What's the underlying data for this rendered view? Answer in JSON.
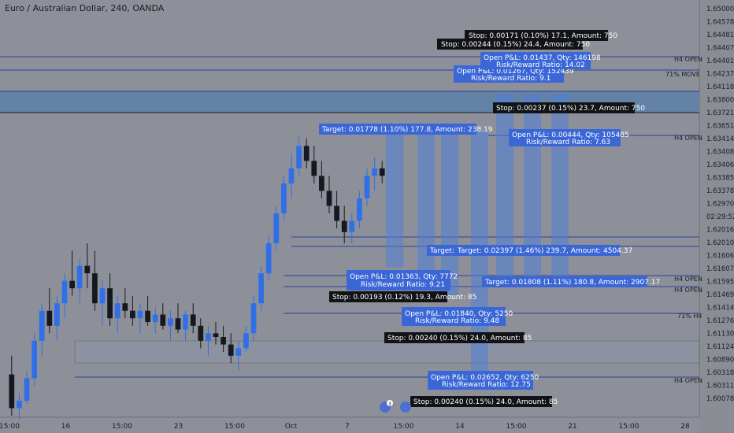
{
  "title": "Euro / Australian Dollar, 240, OANDA",
  "chart_data": {
    "type": "candlestick",
    "ylim": [
      1.6,
      1.654
    ],
    "price_scale": [
      "1.65000",
      "1.64578",
      "1.64481",
      "1.64407",
      "1.64401",
      "1.64237",
      "1.64118",
      "1.63800",
      "1.63721",
      "1.63651",
      "1.63414",
      "1.63408",
      "1.63406",
      "1.63385",
      "1.63378",
      "1.62970",
      "02:29:52",
      "1.62016",
      "1.62010",
      "1.61606",
      "1.61607",
      "1.61595",
      "1.61469",
      "1.61414",
      "1.61276",
      "1.61130",
      "1.61124",
      "1.60890",
      "1.60318",
      "1.60311",
      "1.60078"
    ],
    "x_ticks": [
      "15:00",
      "16",
      "15:00",
      "23",
      "15:00",
      "Oct",
      "7",
      "15:00",
      "14",
      "15:00",
      "21",
      "15:00",
      "28"
    ],
    "level_labels": [
      "H4 OPEN",
      "71% MOVE",
      "H4 OPEN",
      "H4 OPEN",
      "H4 OPEN",
      "71% H4",
      "H4 OPEN"
    ],
    "annotations": [
      "Stop: 0.00171 (0.10%) 17.1, Amount: 750",
      "Stop: 0.00244 (0.15%) 24.4, Amount: 750",
      "Open P&L: 0.01437, Qty: 146198",
      "Risk/Reward Ratio: 14.02",
      "Open P&L: 0.01267, Qty: 152439",
      "Risk/Reward Ratio: 9.1",
      "Stop: 0.00237 (0.15%) 23.7, Amount: 750",
      "Target: 0.01778 (1.10%) 177.8, Amount: 238.19",
      "Open P&L: 0.00444, Qty: 105485",
      "Risk/Reward Ratio: 7.63",
      "Target:",
      "Target: 0.02397 (1.46%) 239.7, Amount: 4504.37",
      "Open P&L: 0.01363, Qty: 7772",
      "Risk/Reward Ratio: 9.21",
      "Target: 0.01808 (1.11%) 180.8, Amount: 2907.17",
      "Stop: 0.00193 (0.12%) 19.3, Amount: 85",
      "Open P&L: 0.01840, Qty: 5250",
      "Risk/Reward Ratio: 9.48",
      "Stop: 0.00240 (0.15%) 24.0, Amount: 85",
      "Open P&L: 0.02652, Qty: 6250",
      "Risk/Reward Ratio: 12.75",
      "Stop: 0.00240 (0.15%) 24.0, Amount: 85"
    ],
    "alert_count": "3",
    "candles": [
      {
        "o": 1.6055,
        "h": 1.608,
        "l": 1.6,
        "c": 1.601
      },
      {
        "o": 1.601,
        "h": 1.603,
        "l": 1.5995,
        "c": 1.602
      },
      {
        "o": 1.602,
        "h": 1.606,
        "l": 1.6015,
        "c": 1.605
      },
      {
        "o": 1.605,
        "h": 1.611,
        "l": 1.604,
        "c": 1.61
      },
      {
        "o": 1.61,
        "h": 1.615,
        "l": 1.608,
        "c": 1.614
      },
      {
        "o": 1.614,
        "h": 1.617,
        "l": 1.611,
        "c": 1.612
      },
      {
        "o": 1.612,
        "h": 1.616,
        "l": 1.61,
        "c": 1.615
      },
      {
        "o": 1.615,
        "h": 1.619,
        "l": 1.613,
        "c": 1.618
      },
      {
        "o": 1.618,
        "h": 1.622,
        "l": 1.616,
        "c": 1.617
      },
      {
        "o": 1.617,
        "h": 1.621,
        "l": 1.615,
        "c": 1.62
      },
      {
        "o": 1.62,
        "h": 1.623,
        "l": 1.617,
        "c": 1.619
      },
      {
        "o": 1.619,
        "h": 1.622,
        "l": 1.614,
        "c": 1.615
      },
      {
        "o": 1.615,
        "h": 1.618,
        "l": 1.612,
        "c": 1.617
      },
      {
        "o": 1.617,
        "h": 1.619,
        "l": 1.612,
        "c": 1.613
      },
      {
        "o": 1.613,
        "h": 1.616,
        "l": 1.611,
        "c": 1.615
      },
      {
        "o": 1.615,
        "h": 1.617,
        "l": 1.613,
        "c": 1.614
      },
      {
        "o": 1.614,
        "h": 1.616,
        "l": 1.612,
        "c": 1.613
      },
      {
        "o": 1.613,
        "h": 1.615,
        "l": 1.611,
        "c": 1.614
      },
      {
        "o": 1.614,
        "h": 1.616,
        "l": 1.612,
        "c": 1.6125
      },
      {
        "o": 1.6125,
        "h": 1.6145,
        "l": 1.611,
        "c": 1.6135
      },
      {
        "o": 1.6135,
        "h": 1.615,
        "l": 1.6115,
        "c": 1.612
      },
      {
        "o": 1.612,
        "h": 1.614,
        "l": 1.61,
        "c": 1.613
      },
      {
        "o": 1.613,
        "h": 1.615,
        "l": 1.611,
        "c": 1.6115
      },
      {
        "o": 1.6115,
        "h": 1.614,
        "l": 1.61,
        "c": 1.6135
      },
      {
        "o": 1.6135,
        "h": 1.615,
        "l": 1.611,
        "c": 1.612
      },
      {
        "o": 1.612,
        "h": 1.613,
        "l": 1.609,
        "c": 1.61
      },
      {
        "o": 1.61,
        "h": 1.612,
        "l": 1.608,
        "c": 1.611
      },
      {
        "o": 1.611,
        "h": 1.6125,
        "l": 1.6095,
        "c": 1.6105
      },
      {
        "o": 1.6105,
        "h": 1.612,
        "l": 1.6085,
        "c": 1.6095
      },
      {
        "o": 1.6095,
        "h": 1.611,
        "l": 1.607,
        "c": 1.608
      },
      {
        "o": 1.608,
        "h": 1.61,
        "l": 1.606,
        "c": 1.609
      },
      {
        "o": 1.609,
        "h": 1.612,
        "l": 1.6085,
        "c": 1.611
      },
      {
        "o": 1.611,
        "h": 1.616,
        "l": 1.61,
        "c": 1.615
      },
      {
        "o": 1.615,
        "h": 1.62,
        "l": 1.614,
        "c": 1.619
      },
      {
        "o": 1.619,
        "h": 1.624,
        "l": 1.618,
        "c": 1.623
      },
      {
        "o": 1.623,
        "h": 1.628,
        "l": 1.622,
        "c": 1.627
      },
      {
        "o": 1.627,
        "h": 1.632,
        "l": 1.626,
        "c": 1.631
      },
      {
        "o": 1.631,
        "h": 1.635,
        "l": 1.629,
        "c": 1.633
      },
      {
        "o": 1.633,
        "h": 1.6372,
        "l": 1.632,
        "c": 1.636
      },
      {
        "o": 1.636,
        "h": 1.637,
        "l": 1.633,
        "c": 1.634
      },
      {
        "o": 1.634,
        "h": 1.636,
        "l": 1.631,
        "c": 1.632
      },
      {
        "o": 1.632,
        "h": 1.634,
        "l": 1.629,
        "c": 1.63
      },
      {
        "o": 1.63,
        "h": 1.632,
        "l": 1.627,
        "c": 1.628
      },
      {
        "o": 1.628,
        "h": 1.63,
        "l": 1.625,
        "c": 1.626
      },
      {
        "o": 1.626,
        "h": 1.628,
        "l": 1.623,
        "c": 1.6245
      },
      {
        "o": 1.6245,
        "h": 1.627,
        "l": 1.623,
        "c": 1.626
      },
      {
        "o": 1.626,
        "h": 1.63,
        "l": 1.625,
        "c": 1.629
      },
      {
        "o": 1.629,
        "h": 1.633,
        "l": 1.628,
        "c": 1.632
      },
      {
        "o": 1.632,
        "h": 1.6345,
        "l": 1.63,
        "c": 1.633
      },
      {
        "o": 1.633,
        "h": 1.634,
        "l": 1.631,
        "c": 1.632
      }
    ]
  }
}
